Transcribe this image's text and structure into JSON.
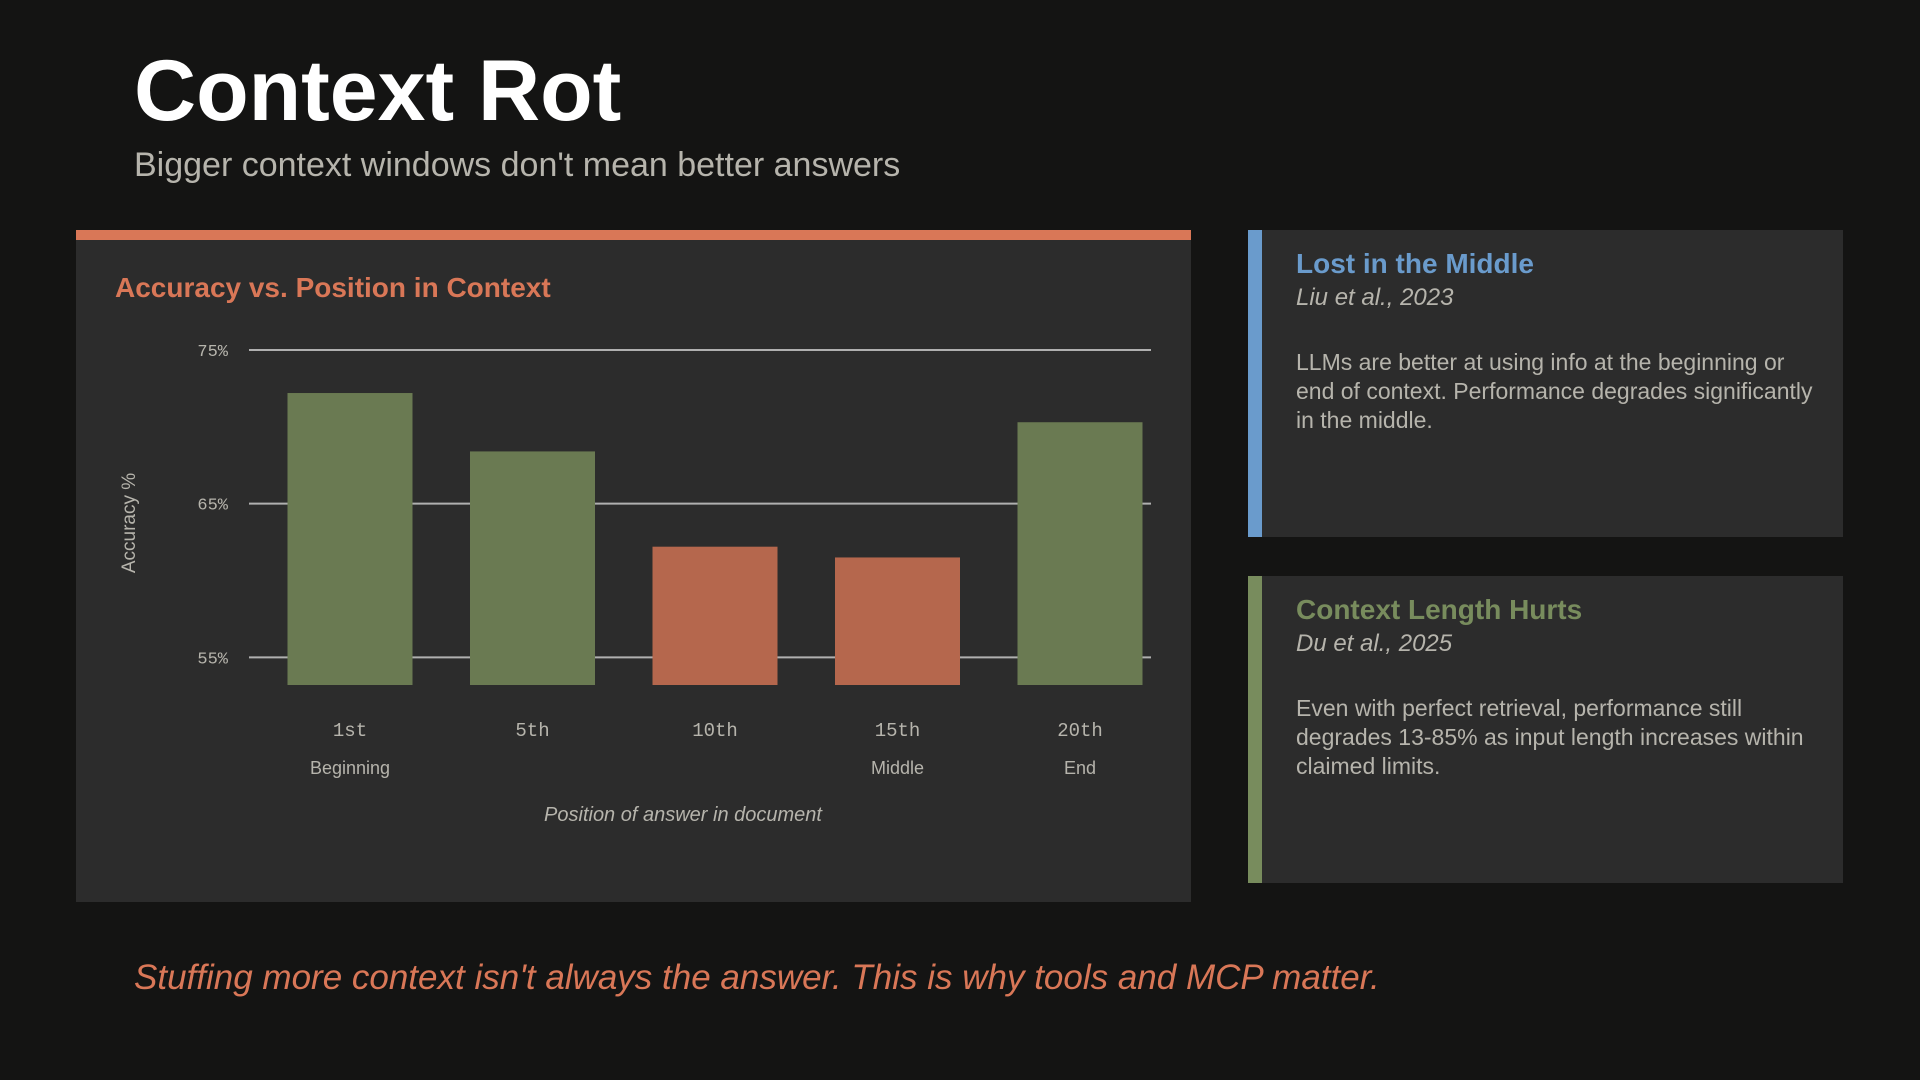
{
  "colors": {
    "background": "#141413",
    "panel": "#2c2c2c",
    "accent_orange": "#d97757",
    "accent_blue": "#6a9bcc",
    "accent_green": "#788c5d",
    "bar_good": "#6a7a52",
    "bar_bad": "#b5674d",
    "muted_text": "#b6b4ac",
    "gridline": "#b0b0b0"
  },
  "slide": {
    "title": "Context Rot",
    "subtitle": "Bigger context windows don't mean better answers",
    "footer": "Stuffing more context isn't always the answer. This is why tools and MCP matter."
  },
  "chart_data": {
    "type": "bar",
    "title": "Accuracy vs. Position in Context",
    "xlabel": "Position of answer in document",
    "ylabel": "Accuracy %",
    "categories": [
      "1st",
      "5th",
      "10th",
      "15th",
      "20th"
    ],
    "category_sublabels": [
      "Beginning",
      "",
      "",
      "Middle",
      "End"
    ],
    "values": [
      72.2,
      68.4,
      62.2,
      61.5,
      70.3
    ],
    "bar_colors": [
      "good",
      "good",
      "bad",
      "bad",
      "good"
    ],
    "ylim": [
      53.2,
      75
    ],
    "yticks": [
      55,
      65,
      75
    ],
    "ytick_labels": [
      "55%",
      "65%",
      "75%"
    ],
    "grid": true,
    "legend": "none"
  },
  "cards": [
    {
      "title": "Lost in the Middle",
      "citation": "Liu et al., 2023",
      "body": "LLMs are better at using info at the beginning or end of context. Performance degrades significantly in the middle.",
      "color": "#6a9bcc"
    },
    {
      "title": "Context Length Hurts",
      "citation": "Du et al., 2025",
      "body": "Even with perfect retrieval, performance still degrades 13-85% as input length increases within claimed limits.",
      "color": "#788c5d"
    }
  ]
}
